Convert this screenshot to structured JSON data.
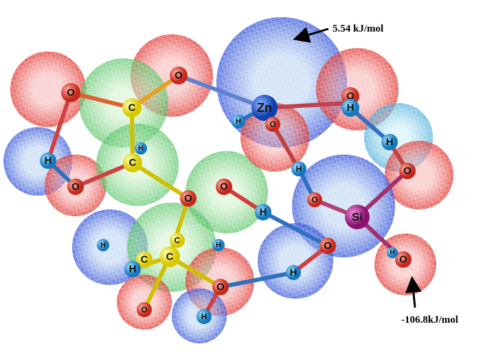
{
  "annotations": {
    "max_potential": "5.54 kJ/mol",
    "min_potential": "-106.8kJ/mol"
  },
  "atoms": [
    "O",
    "C",
    "O",
    "Zn",
    "O",
    "H",
    "H",
    "O",
    "O",
    "H",
    "C",
    "H",
    "O",
    "O",
    "H",
    "O",
    "Si",
    "H",
    "O",
    "H",
    "O",
    "H",
    "O",
    "H",
    "C",
    "H",
    "C",
    "H",
    "H",
    "O",
    "H",
    "O",
    "C"
  ]
}
